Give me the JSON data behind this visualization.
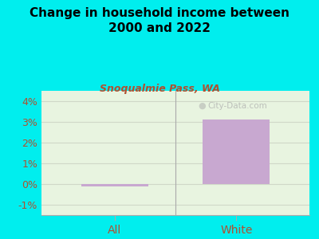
{
  "title": "Change in household income between\n2000 and 2022",
  "subtitle": "Snoqualmie Pass, WA",
  "categories": [
    "All",
    "White"
  ],
  "values": [
    -0.001,
    0.031
  ],
  "bar_color": "#c8a8d0",
  "bg_outer": "#00eeee",
  "bg_plot": "#e8f4e0",
  "title_color": "#000000",
  "subtitle_color": "#b05030",
  "tick_color": "#b05030",
  "ylim": [
    -0.015,
    0.045
  ],
  "yticks": [
    -0.01,
    0.0,
    0.01,
    0.02,
    0.03,
    0.04
  ],
  "ytick_labels": [
    "-1%",
    "0%",
    "1%",
    "2%",
    "3%",
    "4%"
  ],
  "watermark": "City-Data.com",
  "divider_color": "#aaaaaa",
  "grid_color": "#d0d8c8"
}
